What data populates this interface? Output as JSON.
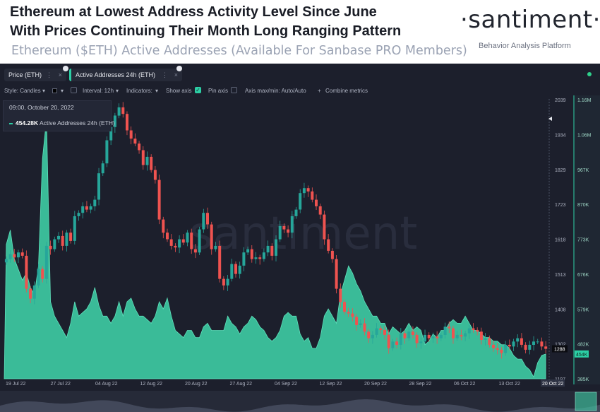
{
  "header": {
    "title_line1": "Ethereum at Lowest Address Activity Level Since June",
    "title_line2": "With Prices Continuing Their Month Long Ranging Pattern",
    "subtitle": "Ethereum ($ETH) Active Addresses (Available For Sanbase PRO Members)",
    "brand": "·santiment·",
    "tagline": "Behavior Analysis Platform"
  },
  "tabs": [
    {
      "label": "Price (ETH)",
      "menu_icon": "⋮",
      "close_icon": "×"
    },
    {
      "label": "Active Addresses 24h (ETH)",
      "menu_icon": "⋮",
      "close_icon": "×"
    }
  ],
  "toolbar": {
    "style_label": "Style: Candles",
    "interval_label": "Interval: 12h",
    "indicators_label": "Indicators:",
    "show_axis_label": "Show axis",
    "pin_axis_label": "Pin axis",
    "axis_minmax_label": "Axis max/min: Auto/Auto",
    "combine_label": "Combine metrics",
    "chevron": "▾",
    "plus": "+",
    "check": "✓"
  },
  "legend": {
    "date": "09:00, October 20, 2022",
    "value": "454.28K",
    "metric": "Active Addresses 24h (ETH)"
  },
  "colors": {
    "panel_bg": "#1c1f2c",
    "up": "#26a69a",
    "down": "#ef5350",
    "area": "#3fd1a7"
  },
  "chart_data": {
    "type": "candlestick+area",
    "x_ticks": [
      "19 Jul 22",
      "27 Jul 22",
      "04 Aug 22",
      "12 Aug 22",
      "20 Aug 22",
      "27 Aug 22",
      "04 Sep 22",
      "12 Sep 22",
      "20 Sep 22",
      "28 Sep 22",
      "06 Oct 22",
      "13 Oct 22",
      "20 Oct 22"
    ],
    "price_axis": {
      "ticks": [
        "2039",
        "1934",
        "1829",
        "1723",
        "1618",
        "1513",
        "1408",
        "1302",
        "1197"
      ],
      "current": "1288",
      "min": 1197,
      "max": 2039
    },
    "addr_axis": {
      "ticks": [
        "1.16M",
        "1.06M",
        "967K",
        "870K",
        "773K",
        "676K",
        "579K",
        "482K",
        "385K"
      ],
      "current": "454K",
      "min": 385000,
      "max": 1160000
    },
    "price_close": [
      1560,
      1575,
      1565,
      1580,
      1570,
      1470,
      1440,
      1480,
      1530,
      1500,
      1600,
      1590,
      1620,
      1630,
      1600,
      1640,
      1615,
      1690,
      1700,
      1720,
      1710,
      1720,
      1740,
      1820,
      1850,
      1920,
      1960,
      1995,
      2020,
      2000,
      1950,
      1925,
      1910,
      1890,
      1845,
      1870,
      1830,
      1800,
      1680,
      1640,
      1620,
      1600,
      1595,
      1620,
      1610,
      1640,
      1590,
      1580,
      1650,
      1700,
      1665,
      1590,
      1600,
      1500,
      1480,
      1500,
      1545,
      1515,
      1540,
      1580,
      1590,
      1560,
      1565,
      1560,
      1580,
      1600,
      1570,
      1620,
      1660,
      1650,
      1640,
      1690,
      1710,
      1760,
      1775,
      1765,
      1740,
      1720,
      1695,
      1620,
      1585,
      1560,
      1470,
      1430,
      1400,
      1395,
      1385,
      1360,
      1365,
      1340,
      1320,
      1330,
      1350,
      1345,
      1330,
      1290,
      1310,
      1300,
      1335,
      1320,
      1340,
      1330,
      1305,
      1310,
      1330,
      1320,
      1325,
      1320,
      1330,
      1355,
      1350,
      1320,
      1330,
      1325,
      1335,
      1350,
      1345,
      1340,
      1315,
      1320,
      1300,
      1290,
      1285,
      1275,
      1300,
      1295,
      1310,
      1320,
      1300,
      1285,
      1300,
      1310,
      1310,
      1295,
      1288
    ],
    "active_addresses": [
      760,
      800,
      720,
      690,
      660,
      680,
      640,
      620,
      700,
      1000,
      1110,
      600,
      560,
      540,
      520,
      500,
      540,
      600,
      560,
      570,
      580,
      600,
      640,
      590,
      560,
      560,
      540,
      560,
      600,
      560,
      600,
      610,
      580,
      560,
      560,
      550,
      540,
      560,
      600,
      580,
      610,
      560,
      520,
      510,
      500,
      520,
      520,
      500,
      500,
      530,
      540,
      520,
      520,
      520,
      520,
      560,
      540,
      530,
      510,
      530,
      540,
      560,
      550,
      530,
      520,
      500,
      490,
      500,
      520,
      560,
      570,
      560,
      560,
      510,
      490,
      500,
      470,
      470,
      500,
      560,
      580,
      560,
      540,
      620,
      660,
      700,
      680,
      650,
      630,
      600,
      580,
      560,
      560,
      540,
      540,
      510,
      530,
      520,
      510,
      520,
      540,
      520,
      530,
      520,
      480,
      490,
      510,
      500,
      520,
      520,
      540,
      550,
      540,
      540,
      560,
      540,
      520,
      520,
      510,
      500,
      500,
      490,
      490,
      480,
      480,
      470,
      450,
      440,
      440,
      420,
      410,
      390,
      430,
      450,
      454
    ]
  }
}
